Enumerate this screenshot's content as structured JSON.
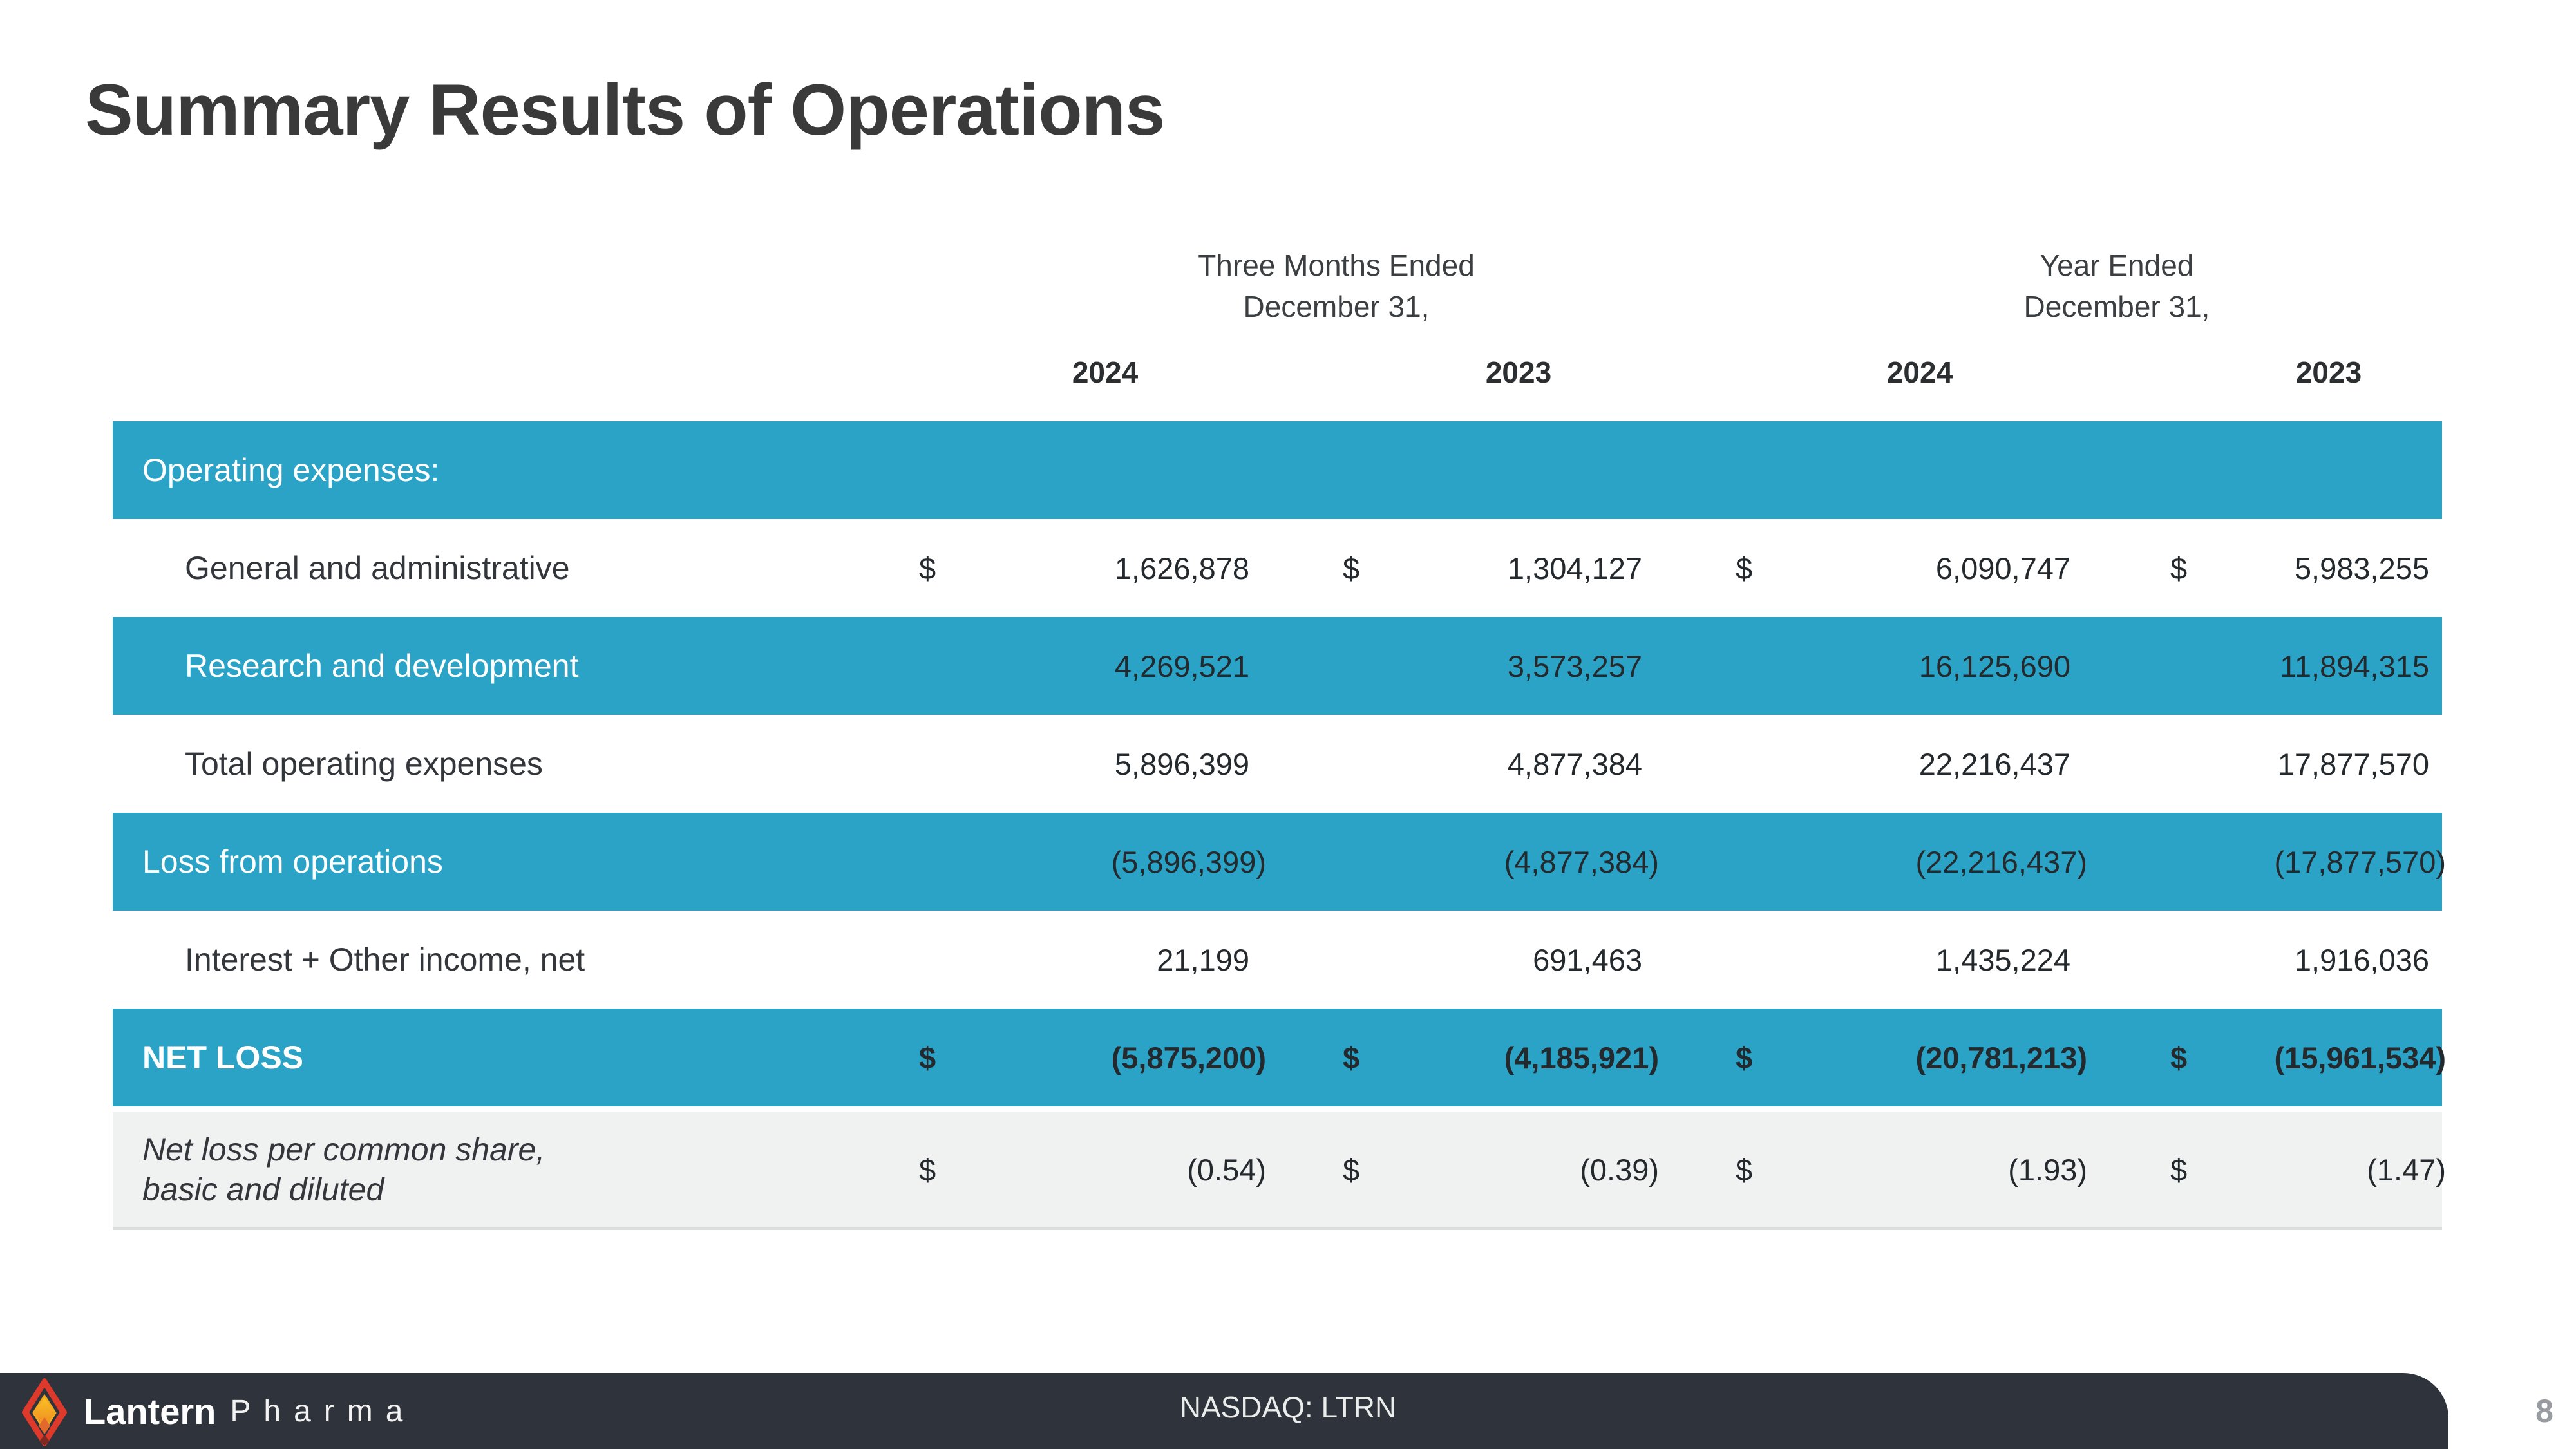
{
  "slide": {
    "title": "Summary Results of Operations",
    "page_number": "8",
    "footer": {
      "ticker": "NASDAQ: LTRN",
      "brand_bold": "Lantern",
      "brand_light": "Pharma"
    },
    "colors": {
      "teal_row": "#2aa3c6",
      "footer_bar": "#2f333b",
      "alt_row": "#f0f1f1",
      "title_text": "#3a3a3a",
      "number_text": "#24292d",
      "logo_red": "#de3a2c",
      "logo_orange": "#ee8022",
      "logo_yellow": "#f9c624"
    }
  },
  "table": {
    "col_groups": [
      {
        "title_line1": "Three Months Ended",
        "title_line2": "December 31,"
      },
      {
        "title_line1": "Year Ended",
        "title_line2": "December 31,"
      }
    ],
    "year_headers": [
      "2024",
      "2023",
      "2024",
      "2023"
    ],
    "rows": [
      {
        "label": "Operating expenses:",
        "style": "teal-header",
        "indent": false,
        "dollar": false,
        "values": [
          "",
          "",
          "",
          ""
        ]
      },
      {
        "label": "General and administrative",
        "style": "white",
        "indent": true,
        "dollar": true,
        "values": [
          "1,626,878",
          "1,304,127",
          "6,090,747",
          "5,983,255"
        ]
      },
      {
        "label": "Research and development",
        "style": "teal",
        "indent": true,
        "dollar": false,
        "values": [
          "4,269,521",
          "3,573,257",
          "16,125,690",
          "11,894,315"
        ]
      },
      {
        "label": "Total operating expenses",
        "style": "white",
        "indent": true,
        "dollar": false,
        "values": [
          "5,896,399",
          "4,877,384",
          "22,216,437",
          "17,877,570"
        ]
      },
      {
        "label": "Loss from operations",
        "style": "teal",
        "indent": false,
        "dollar": false,
        "values": [
          "(5,896,399)",
          "(4,877,384)",
          "(22,216,437)",
          "(17,877,570)"
        ]
      },
      {
        "label": "Interest + Other income, net",
        "style": "white",
        "indent": true,
        "dollar": false,
        "values": [
          "21,199",
          "691,463",
          "1,435,224",
          "1,916,036"
        ]
      },
      {
        "label": "NET LOSS",
        "style": "teal-bold",
        "indent": false,
        "dollar": true,
        "values": [
          "(5,875,200)",
          "(4,185,921)",
          "(20,781,213)",
          "(15,961,534)"
        ]
      },
      {
        "label": "Net loss per common share,\nbasic and diluted",
        "style": "gray-italic",
        "indent": false,
        "dollar": true,
        "values": [
          "(0.54)",
          "(0.39)",
          "(1.93)",
          "(1.47)"
        ]
      }
    ]
  }
}
